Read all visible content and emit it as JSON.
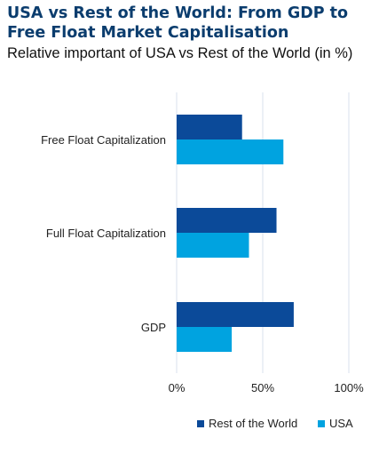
{
  "header": {
    "title": "USA vs Rest of the World: From GDP to Free Float Market Capitalisation",
    "subtitle": "Relative important of USA vs Rest of the World (in %)"
  },
  "chart_data": {
    "type": "bar",
    "orientation": "horizontal",
    "categories": [
      "Free Float Capitalization",
      "Full Float Capitalization",
      "GDP"
    ],
    "series": [
      {
        "name": "Rest of the World",
        "color": "#0b4a99",
        "values": [
          38,
          58,
          68
        ]
      },
      {
        "name": "USA",
        "color": "#00a3e0",
        "values": [
          62,
          42,
          32
        ]
      }
    ],
    "xlim": [
      0,
      100
    ],
    "xticks": [
      0,
      50,
      100
    ],
    "xtick_labels": [
      "0%",
      "50%",
      "100%"
    ],
    "grid": true,
    "legend_position": "bottom"
  }
}
